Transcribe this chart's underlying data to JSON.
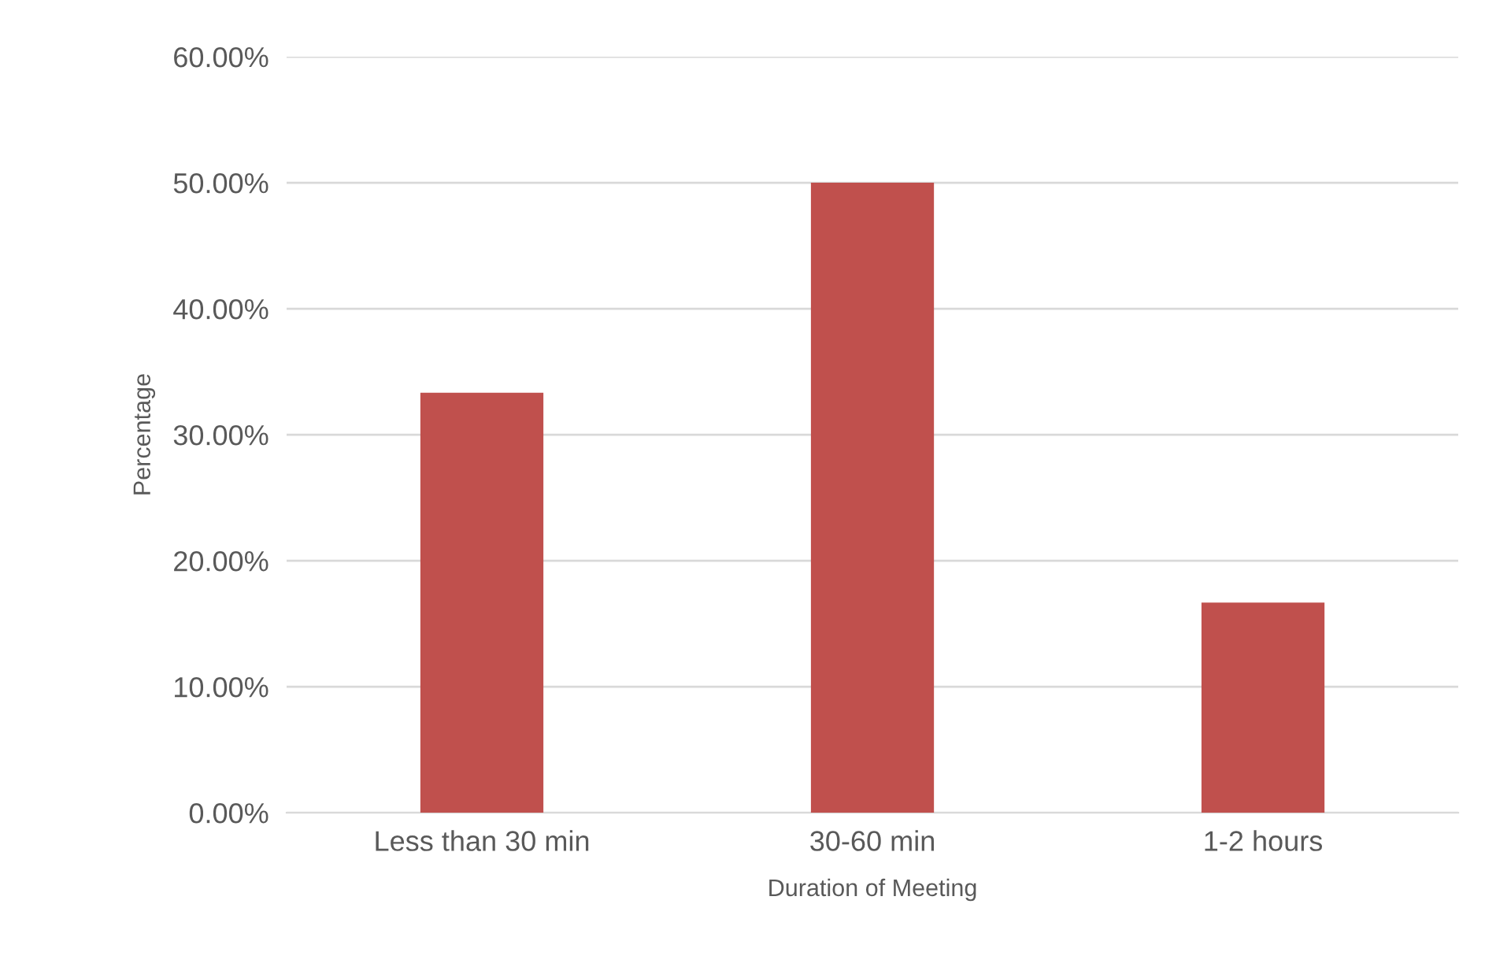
{
  "chart_data": {
    "type": "bar",
    "xlabel": "Duration of Meeting",
    "ylabel": "Percentage",
    "categories": [
      "Less than 30 min",
      "30-60 min",
      "1-2 hours"
    ],
    "values": [
      33.33,
      50,
      16.67
    ],
    "color": "#c0504d",
    "ylim": [
      0,
      60
    ],
    "yticks": [
      {
        "value": 0,
        "label": "0.00%"
      },
      {
        "value": 10,
        "label": "10.00%"
      },
      {
        "value": 20,
        "label": "20.00%"
      },
      {
        "value": 30,
        "label": "30.00%"
      },
      {
        "value": 40,
        "label": "40.00%"
      },
      {
        "value": 50,
        "label": "50.00%"
      },
      {
        "value": 60,
        "label": "60.00%"
      }
    ],
    "grid": "y"
  }
}
